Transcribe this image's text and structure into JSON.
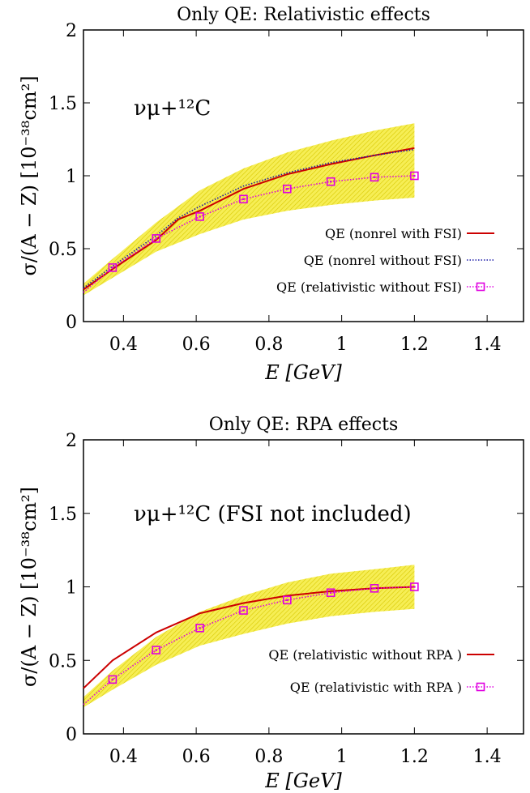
{
  "chart_data": [
    {
      "type": "line",
      "title": "Only QE: Relativistic effects",
      "xlabel": "E [GeV]",
      "ylabel": "σ/(A − Z) [10⁻³⁸cm²]",
      "xlim": [
        0.29,
        1.5
      ],
      "ylim": [
        0,
        2
      ],
      "xticks": [
        "0.4",
        "0.6",
        "0.8",
        "1",
        "1.2",
        "1.4"
      ],
      "yticks": [
        "0",
        "0.5",
        "1",
        "1.5",
        "2"
      ],
      "annotation": "νμ+¹²C",
      "band": {
        "color": "#f2e600",
        "x": [
          0.29,
          0.37,
          0.49,
          0.61,
          0.73,
          0.85,
          0.97,
          1.09,
          1.2
        ],
        "upper": [
          0.26,
          0.43,
          0.68,
          0.9,
          1.05,
          1.16,
          1.24,
          1.31,
          1.36
        ],
        "lower": [
          0.18,
          0.3,
          0.48,
          0.6,
          0.7,
          0.76,
          0.8,
          0.83,
          0.85
        ]
      },
      "series": [
        {
          "name": "QE (nonrel with FSI)",
          "color": "#cc0000",
          "style": "solid",
          "x": [
            0.29,
            0.37,
            0.49,
            0.55,
            0.61,
            0.73,
            0.85,
            0.97,
            1.09,
            1.2
          ],
          "y": [
            0.22,
            0.36,
            0.56,
            0.7,
            0.76,
            0.91,
            1.01,
            1.08,
            1.14,
            1.19
          ]
        },
        {
          "name": "QE (nonrel without FSI)",
          "color": "#1a1aa8",
          "style": "dotted",
          "x": [
            0.29,
            0.37,
            0.49,
            0.55,
            0.61,
            0.73,
            0.85,
            0.97,
            1.09,
            1.2
          ],
          "y": [
            0.23,
            0.38,
            0.59,
            0.71,
            0.79,
            0.93,
            1.02,
            1.09,
            1.14,
            1.18
          ]
        },
        {
          "name": "QE (relativistic without FSI)",
          "color": "#e000e0",
          "style": "dotted-marker",
          "marker": "square",
          "x": [
            0.29,
            0.37,
            0.49,
            0.61,
            0.73,
            0.85,
            0.97,
            1.09,
            1.2
          ],
          "y": [
            0.2,
            0.37,
            0.57,
            0.72,
            0.84,
            0.91,
            0.96,
            0.99,
            1.0
          ],
          "marker_x": [
            0.37,
            0.49,
            0.61,
            0.73,
            0.85,
            0.97,
            1.09,
            1.2
          ]
        }
      ],
      "legend_position": "bottom-right"
    },
    {
      "type": "line",
      "title": "Only QE: RPA effects",
      "xlabel": "E [GeV]",
      "ylabel": "σ/(A − Z) [10⁻³⁸cm²]",
      "xlim": [
        0.29,
        1.5
      ],
      "ylim": [
        0,
        2
      ],
      "xticks": [
        "0.4",
        "0.6",
        "0.8",
        "1",
        "1.2",
        "1.4"
      ],
      "yticks": [
        "0",
        "0.5",
        "1",
        "1.5",
        "2"
      ],
      "annotation": "νμ+¹²C (FSI not included)",
      "band": {
        "color": "#f2e600",
        "x": [
          0.29,
          0.37,
          0.49,
          0.61,
          0.73,
          0.85,
          0.97,
          1.09,
          1.2
        ],
        "upper": [
          0.25,
          0.43,
          0.66,
          0.83,
          0.94,
          1.03,
          1.09,
          1.12,
          1.15
        ],
        "lower": [
          0.18,
          0.3,
          0.47,
          0.6,
          0.68,
          0.75,
          0.8,
          0.83,
          0.85
        ]
      },
      "series": [
        {
          "name": "QE (relativistic without RPA )",
          "color": "#cc0000",
          "style": "solid",
          "x": [
            0.29,
            0.37,
            0.49,
            0.61,
            0.73,
            0.85,
            0.97,
            1.09,
            1.2
          ],
          "y": [
            0.31,
            0.5,
            0.69,
            0.82,
            0.89,
            0.94,
            0.97,
            0.99,
            1.0
          ]
        },
        {
          "name": "QE (relativistic with RPA )",
          "color": "#e000e0",
          "style": "dotted-marker",
          "marker": "square",
          "x": [
            0.29,
            0.37,
            0.49,
            0.61,
            0.73,
            0.85,
            0.97,
            1.09,
            1.2
          ],
          "y": [
            0.2,
            0.37,
            0.57,
            0.72,
            0.84,
            0.91,
            0.96,
            0.99,
            1.0
          ],
          "marker_x": [
            0.37,
            0.49,
            0.61,
            0.73,
            0.85,
            0.97,
            1.09,
            1.2
          ]
        }
      ],
      "legend_position": "bottom-right"
    }
  ]
}
